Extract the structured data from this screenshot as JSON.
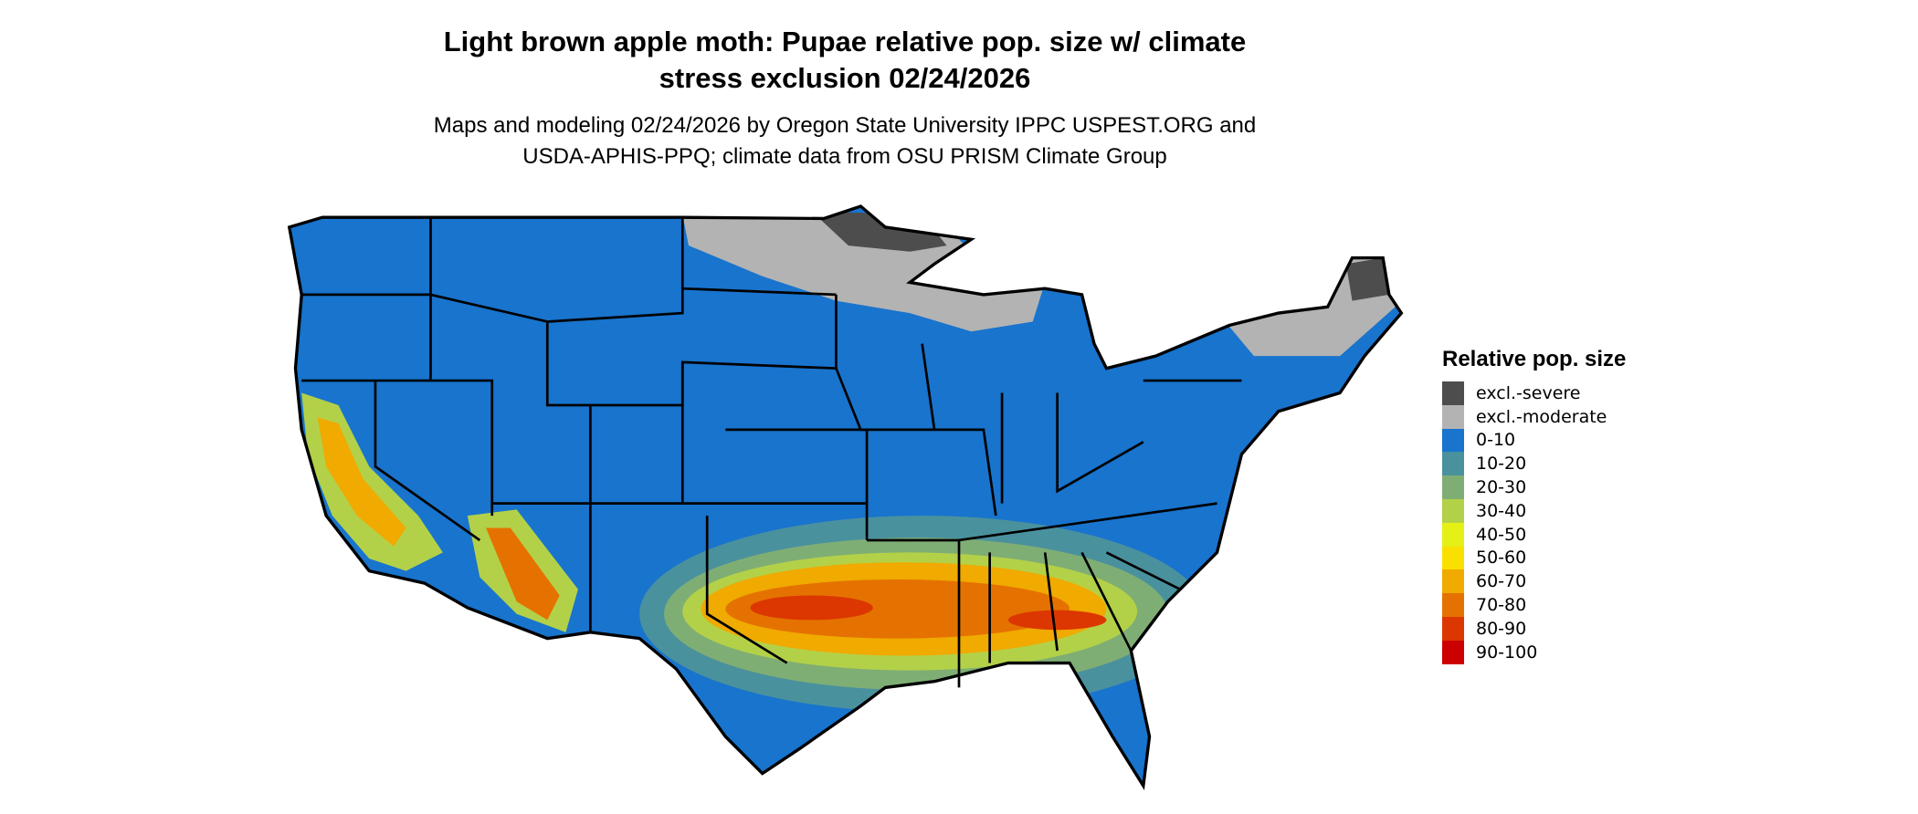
{
  "title_line1": "Light brown apple moth: Pupae relative pop. size w/ climate",
  "title_line2": "stress exclusion 02/24/2026",
  "subtitle_line1": "Maps and modeling 02/24/2026 by Oregon State University IPPC USPEST.ORG and",
  "subtitle_line2": "USDA-APHIS-PPQ; climate data from OSU PRISM Climate Group",
  "legend": {
    "title": "Relative pop. size",
    "items": [
      {
        "label": "excl.-severe",
        "color": "#4d4d4d"
      },
      {
        "label": "excl.-moderate",
        "color": "#b3b3b3"
      },
      {
        "label": "0-10",
        "color": "#1874cd"
      },
      {
        "label": "10-20",
        "color": "#4a919e"
      },
      {
        "label": "20-30",
        "color": "#7fae74"
      },
      {
        "label": "30-40",
        "color": "#b3d148"
      },
      {
        "label": "40-50",
        "color": "#e5f016"
      },
      {
        "label": "50-60",
        "color": "#f9e000"
      },
      {
        "label": "60-70",
        "color": "#f0aa00"
      },
      {
        "label": "70-80",
        "color": "#e57200"
      },
      {
        "label": "80-90",
        "color": "#dc3700"
      },
      {
        "label": "90-100",
        "color": "#cc0000"
      }
    ]
  },
  "region": "Contiguous United States"
}
